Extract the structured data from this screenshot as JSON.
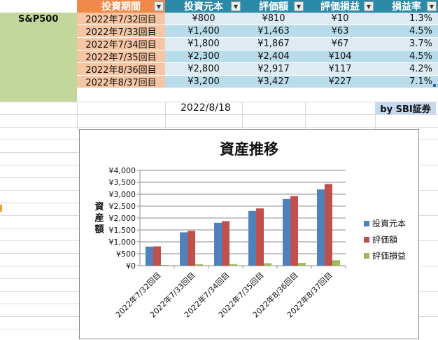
{
  "sheet": {
    "fund_label": "S&P500",
    "headers": [
      "投資期間",
      "投資元本",
      "評価額",
      "評価損益",
      "損益率"
    ],
    "filter_glyph": "▼",
    "rows": [
      [
        "2022年7/32回目",
        "¥800",
        "¥810",
        "¥10",
        "1.3%"
      ],
      [
        "2022年7/33回目",
        "¥1,400",
        "¥1,463",
        "¥63",
        "4.5%"
      ],
      [
        "2022年7/34回目",
        "¥1,800",
        "¥1,867",
        "¥67",
        "3.7%"
      ],
      [
        "2022年7/35回目",
        "¥2,300",
        "¥2,404",
        "¥104",
        "4.5%"
      ],
      [
        "2022年8/36回目",
        "¥2,800",
        "¥2,917",
        "¥117",
        "4.2%"
      ],
      [
        "2022年8/37回目",
        "¥3,200",
        "¥3,427",
        "¥227",
        "7.1%"
      ]
    ],
    "date": "2022/8/18",
    "credit": "by SBI証券",
    "colors": {
      "header_orange": "#f08a4b",
      "header_teal": "#2a8aa8",
      "period_fill": "#f6c6a4",
      "row_light": "#dcecf2",
      "row_dark": "#b9dcea",
      "fund_green": "#c4d79b",
      "credit_fill": "#c6d9f0"
    }
  },
  "chart_data": {
    "type": "bar",
    "title": "資産推移",
    "ylabel": "資産額",
    "xlabel": "",
    "categories": [
      "2022年7/32回目",
      "2022年7/33回目",
      "2022年7/34回目",
      "2022年7/35回目",
      "2022年8/36回目",
      "2022年8/37回目"
    ],
    "series": [
      {
        "name": "投資元本",
        "values": [
          800,
          1400,
          1800,
          2300,
          2800,
          3200
        ],
        "color": "#4f81bd"
      },
      {
        "name": "評価額",
        "values": [
          810,
          1463,
          1867,
          2404,
          2917,
          3427
        ],
        "color": "#c0504d"
      },
      {
        "name": "評価損益",
        "values": [
          10,
          63,
          67,
          104,
          117,
          227
        ],
        "color": "#9bbb59"
      }
    ],
    "ylim": [
      0,
      4000
    ],
    "yticks": [
      "¥0",
      "¥500",
      "¥1,000",
      "¥1,500",
      "¥2,000",
      "¥2,500",
      "¥3,000",
      "¥3,500",
      "¥4,000"
    ],
    "ytick_values": [
      0,
      500,
      1000,
      1500,
      2000,
      2500,
      3000,
      3500,
      4000
    ],
    "grid": true,
    "legend": "right"
  }
}
